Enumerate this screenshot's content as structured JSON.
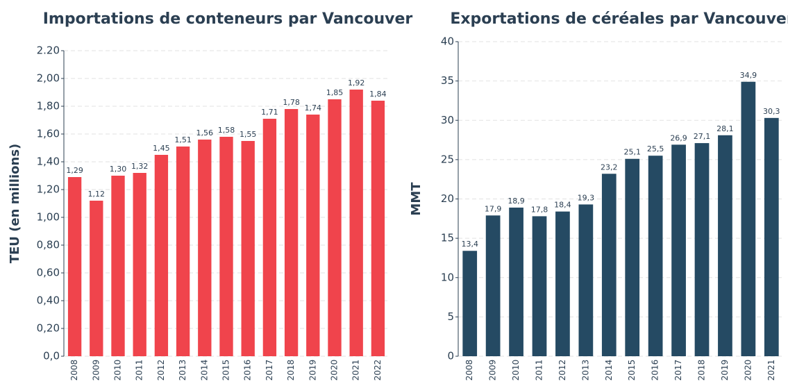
{
  "chart_data": [
    {
      "type": "bar",
      "title": "Importations de conteneurs par Vancouver",
      "ylabel": "TEU (en millions)",
      "categories": [
        "2008",
        "2009",
        "2010",
        "2011",
        "2012",
        "2013",
        "2014",
        "2015",
        "2016",
        "2017",
        "2018",
        "2019",
        "2020",
        "2021",
        "2022"
      ],
      "values": [
        1.29,
        1.12,
        1.3,
        1.32,
        1.45,
        1.51,
        1.56,
        1.58,
        1.55,
        1.71,
        1.78,
        1.74,
        1.85,
        1.92,
        1.84
      ],
      "value_labels": [
        "1,29",
        "1,12",
        "1,30",
        "1,32",
        "1,45",
        "1,51",
        "1,56",
        "1,58",
        "1,55",
        "1,71",
        "1,78",
        "1,74",
        "1,85",
        "1,92",
        "1,84"
      ],
      "color": "#f0444c",
      "ylim": [
        0,
        2.2
      ],
      "yticks": [
        {
          "value": 0,
          "label": "0,0"
        },
        {
          "value": 0.2,
          "label": "0,20"
        },
        {
          "value": 0.4,
          "label": "0,40"
        },
        {
          "value": 0.6,
          "label": "0,60"
        },
        {
          "value": 0.8,
          "label": "0,80"
        },
        {
          "value": 1.0,
          "label": "1,00"
        },
        {
          "value": 1.2,
          "label": "1,20"
        },
        {
          "value": 1.4,
          "label": "1,40"
        },
        {
          "value": 1.6,
          "label": "1,60"
        },
        {
          "value": 1.8,
          "label": "1,80"
        },
        {
          "value": 2.0,
          "label": "2,00"
        },
        {
          "value": 2.2,
          "label": "2.20"
        }
      ],
      "grid": true
    },
    {
      "type": "bar",
      "title": "Exportations de céréales par Vancouver",
      "ylabel": "MMT",
      "categories": [
        "2008",
        "2009",
        "2010",
        "2011",
        "2012",
        "2013",
        "2014",
        "2015",
        "2016",
        "2017",
        "2018",
        "2019",
        "2020",
        "2021"
      ],
      "values": [
        13.4,
        17.9,
        18.9,
        17.8,
        18.4,
        19.3,
        23.2,
        25.1,
        25.5,
        26.9,
        27.1,
        28.1,
        34.9,
        30.3
      ],
      "value_labels": [
        "13,4",
        "17,9",
        "18,9",
        "17,8",
        "18,4",
        "19,3",
        "23,2",
        "25,1",
        "25,5",
        "26,9",
        "27,1",
        "28,1",
        "34,9",
        "30,3"
      ],
      "color": "#254a63",
      "ylim": [
        0,
        40
      ],
      "yticks": [
        0,
        5,
        10,
        15,
        20,
        25,
        30,
        35,
        40
      ],
      "grid": true
    }
  ]
}
